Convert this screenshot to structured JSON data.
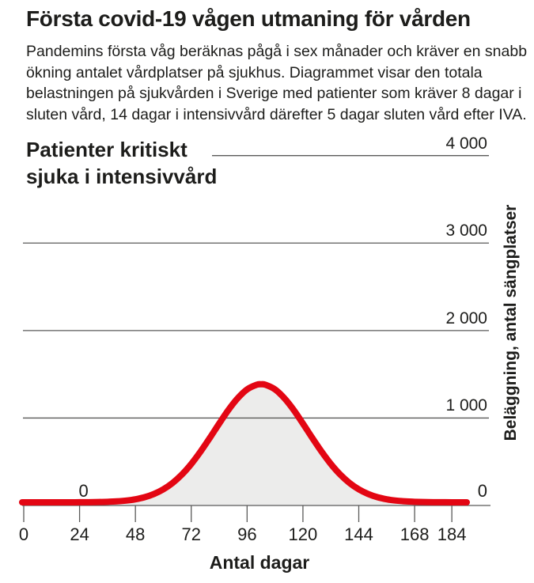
{
  "header": {
    "title": "Första covid-19 vågen utmaning för vården",
    "intro": "Pandemins första våg beräknas pågå i sex månader och kräver en snabb\nökning antalet vårdplatser på sjukhus. Diagrammet visar den totala\nbelastningen på sjukvården i Sverige med patienter som kräver 8 dagar i\nsluten vård, 14 dagar i intensivvård därefter 5 dagar sluten vård efter IVA."
  },
  "chart": {
    "heading": "Patienter kritiskt\nsjuka i intensivvård",
    "xlabel": "Antal dagar",
    "ylabel": "Beläggning, antal sängplatser"
  },
  "colors": {
    "text": "#1d1d1b",
    "line_red": "#e30613",
    "area_fill": "#ececeb",
    "grid_gray": "#5a5a59"
  },
  "chart_data": {
    "type": "area",
    "title": "Patienter kritiskt sjuka i intensivvård",
    "xlabel": "Antal dagar",
    "ylabel": "Beläggning, antal sängplatser",
    "xlim": [
      0,
      184
    ],
    "ylim": [
      0,
      4000
    ],
    "x_ticks": [
      0,
      24,
      48,
      72,
      96,
      120,
      144,
      168,
      184
    ],
    "y_gridlines": [
      1000,
      2000,
      3000,
      4000
    ],
    "grid": true,
    "legend_position": "none",
    "peak": {
      "day": 102,
      "value": 1350
    },
    "annotations": [
      {
        "text": "0",
        "day": 26
      },
      {
        "text": "0",
        "day": 196
      }
    ],
    "series": [
      {
        "name": "Patienter kritiskt sjuka i intensivvård",
        "color": "#e30613",
        "fill": "#ececeb",
        "points": [
          [
            0,
            0
          ],
          [
            4,
            0
          ],
          [
            8,
            0
          ],
          [
            12,
            0
          ],
          [
            16,
            0
          ],
          [
            20,
            0
          ],
          [
            24,
            1
          ],
          [
            28,
            1
          ],
          [
            32,
            3
          ],
          [
            36,
            6
          ],
          [
            40,
            11
          ],
          [
            44,
            20
          ],
          [
            48,
            35
          ],
          [
            52,
            59
          ],
          [
            56,
            96
          ],
          [
            60,
            149
          ],
          [
            64,
            222
          ],
          [
            68,
            318
          ],
          [
            72,
            438
          ],
          [
            76,
            580
          ],
          [
            80,
            737
          ],
          [
            84,
            900
          ],
          [
            88,
            1057
          ],
          [
            92,
            1191
          ],
          [
            96,
            1291
          ],
          [
            100,
            1343
          ],
          [
            102,
            1350
          ],
          [
            104,
            1343
          ],
          [
            108,
            1291
          ],
          [
            112,
            1191
          ],
          [
            116,
            1057
          ],
          [
            120,
            900
          ],
          [
            124,
            737
          ],
          [
            128,
            580
          ],
          [
            132,
            438
          ],
          [
            136,
            318
          ],
          [
            140,
            222
          ],
          [
            144,
            149
          ],
          [
            148,
            96
          ],
          [
            152,
            59
          ],
          [
            156,
            35
          ],
          [
            160,
            20
          ],
          [
            164,
            11
          ],
          [
            168,
            6
          ],
          [
            172,
            3
          ],
          [
            176,
            1
          ],
          [
            180,
            1
          ],
          [
            184,
            0
          ]
        ]
      }
    ]
  }
}
